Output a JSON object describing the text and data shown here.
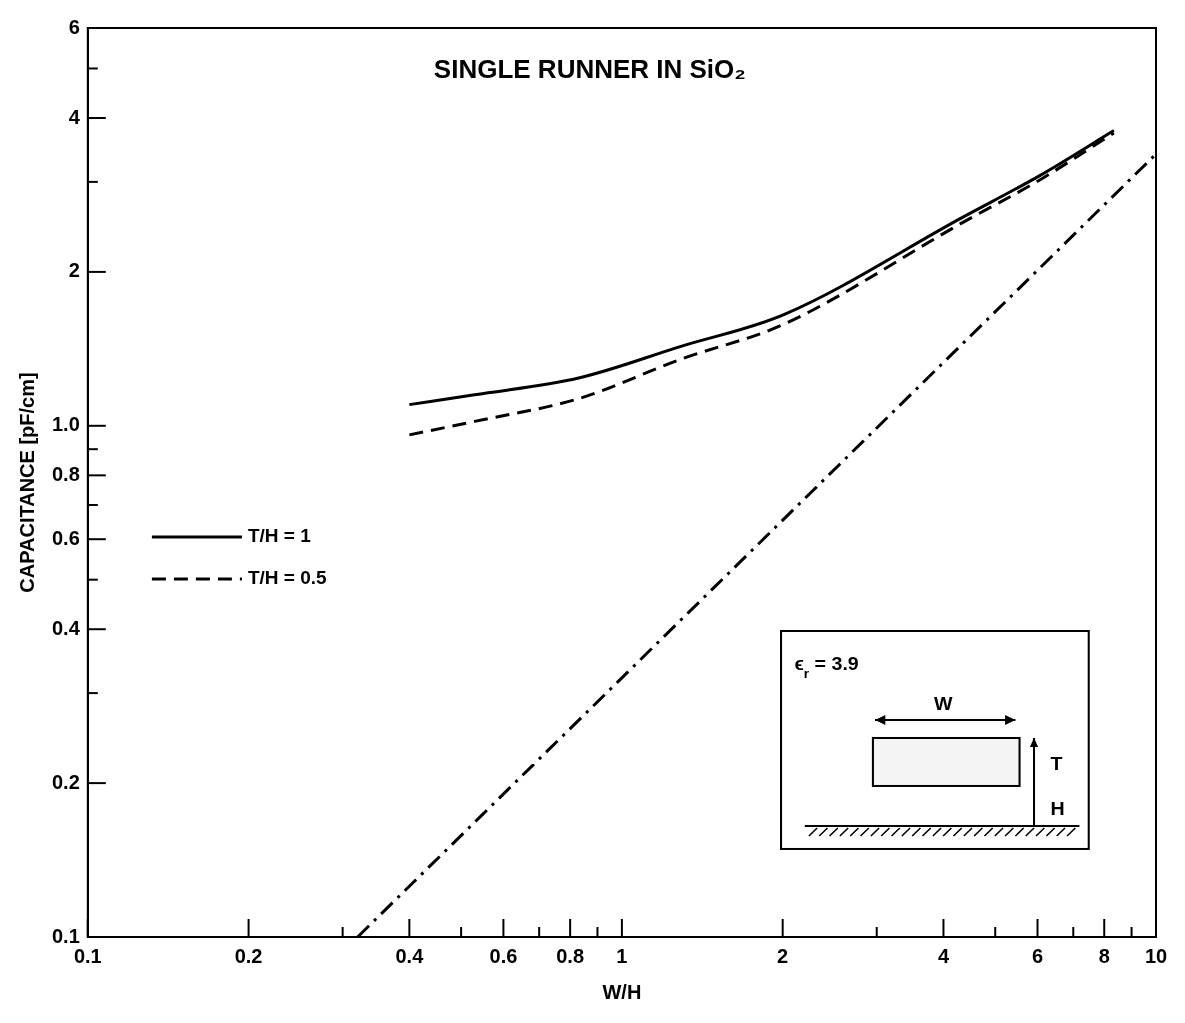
{
  "chart_data": {
    "type": "line",
    "title": "SINGLE RUNNER IN SiO₂",
    "xlabel": "W/H",
    "ylabel": "CAPACITANCE [pF/cm]",
    "log": "xy",
    "xlim": [
      0.1,
      10
    ],
    "ylim": [
      0.1,
      6
    ],
    "xticks": [
      0.1,
      0.2,
      {
        "value": 0.3,
        "label": null
      },
      0.4,
      {
        "value": 0.5,
        "label": null
      },
      0.6,
      {
        "value": 0.7,
        "label": null
      },
      0.8,
      {
        "value": 0.9,
        "label": null
      },
      1,
      2,
      {
        "value": 3,
        "label": null
      },
      4,
      {
        "value": 5,
        "label": null
      },
      6,
      {
        "value": 7,
        "label": null
      },
      8,
      {
        "value": 9,
        "label": null
      },
      10
    ],
    "yticks": [
      0.1,
      0.2,
      {
        "value": 0.3,
        "label": null
      },
      0.4,
      {
        "value": 0.5,
        "label": null
      },
      0.6,
      {
        "value": 0.7,
        "label": null
      },
      0.8,
      {
        "value": 0.9,
        "label": null
      },
      {
        "value": 1,
        "label": "1.0"
      },
      2,
      {
        "value": 3,
        "label": null
      },
      4,
      {
        "value": 5,
        "label": null
      },
      6
    ],
    "grid": false,
    "legend": "left",
    "marker": "none",
    "series": [
      {
        "name": "T/H = 1",
        "color": "#000000",
        "line_style": "solid",
        "x": [
          0.4,
          0.53,
          0.83,
          1.29,
          2.01,
          4.35,
          6.07,
          8.34
        ],
        "values": [
          1.1,
          1.15,
          1.24,
          1.43,
          1.65,
          2.56,
          3.09,
          3.78
        ]
      },
      {
        "name": "T/H = 0.5",
        "color": "#000000",
        "line_style": "dashed",
        "x": [
          0.4,
          0.53,
          0.83,
          1.29,
          2.01,
          4.35,
          6.07,
          8.34
        ],
        "values": [
          0.96,
          1.02,
          1.13,
          1.35,
          1.58,
          2.5,
          3.03,
          3.74
        ]
      },
      {
        "color": "#000000",
        "line_style": "dashdot",
        "x": [
          0.32,
          10
        ],
        "values": [
          0.1,
          3.4
        ]
      }
    ],
    "annotations": [
      "ϵ$_{r}$ = 3.9",
      "W",
      "T",
      "H"
    ]
  }
}
